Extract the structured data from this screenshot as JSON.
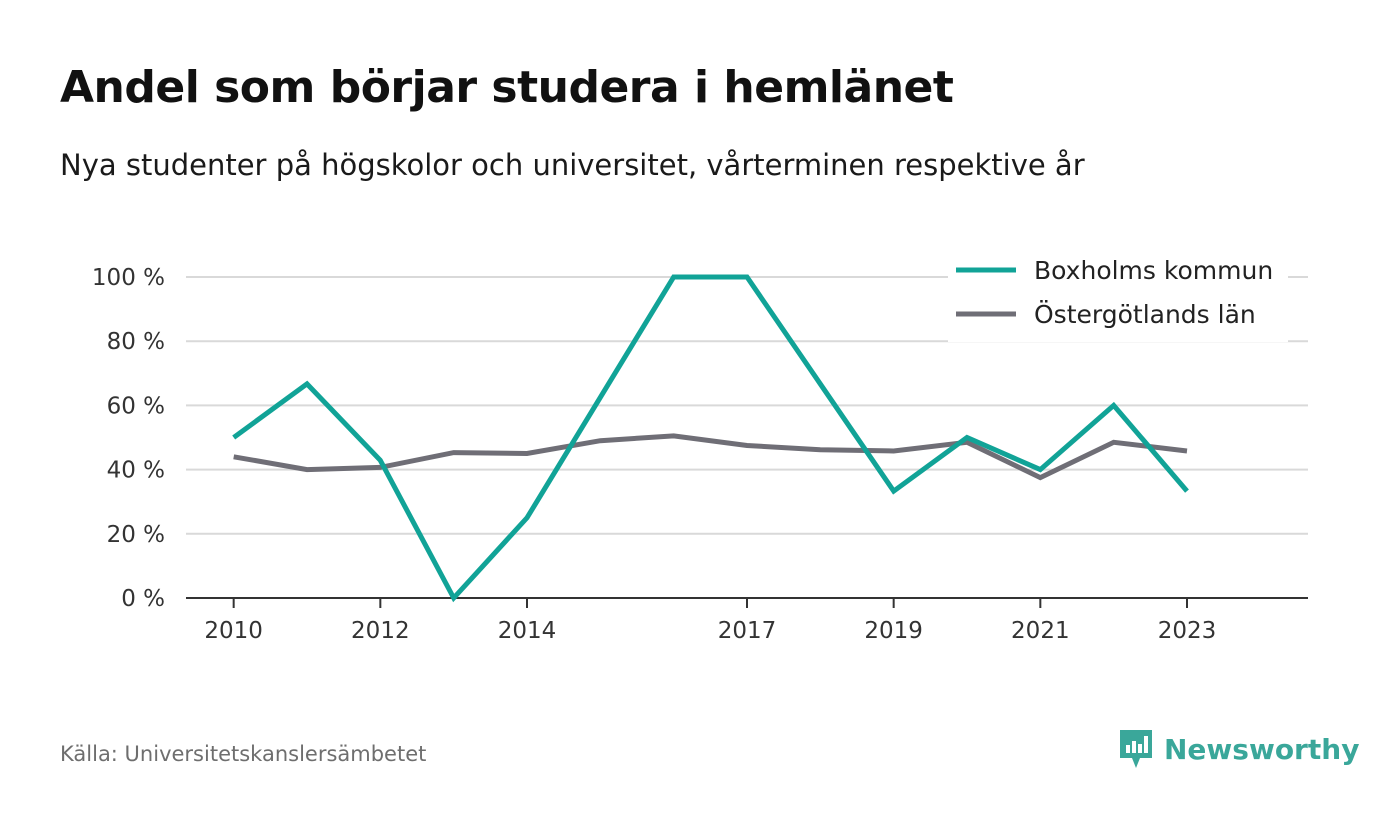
{
  "title": "Andel som börjar studera i hemlänet",
  "subtitle": "Nya studenter på högskolor och universitet, vårterminen respektive år",
  "source": "Källa: Universitetskanslersämbetet",
  "brand": {
    "name": "Newsworthy",
    "icon": "newsworthy-logo-icon",
    "color": "#3aa79a"
  },
  "chart_data": {
    "type": "line",
    "x": [
      2010,
      2011,
      2012,
      2013,
      2014,
      2015,
      2016,
      2017,
      2018,
      2019,
      2020,
      2021,
      2022,
      2023
    ],
    "x_tick_labels": [
      "2010",
      "2012",
      "2014",
      "2017",
      "2019",
      "2021",
      "2023"
    ],
    "x_tick_values": [
      2010,
      2012,
      2014,
      2017,
      2019,
      2021,
      2023
    ],
    "y_tick_labels": [
      "0 %",
      "20 %",
      "40 %",
      "60 %",
      "80 %",
      "100 %"
    ],
    "y_tick_values": [
      0,
      20,
      40,
      60,
      80,
      100
    ],
    "ylim": [
      0,
      100
    ],
    "xlim": [
      2009.35,
      2024.65
    ],
    "grid": true,
    "legend_position": "top-right",
    "series": [
      {
        "name": "Boxholms kommun",
        "color": "#11a397",
        "values": [
          50,
          66.7,
          42.9,
          0,
          25,
          62.5,
          100,
          100,
          66.7,
          33.3,
          50,
          40,
          60,
          33.3
        ]
      },
      {
        "name": "Östergötlands län",
        "color": "#6f6e76",
        "values": [
          44,
          40,
          40.7,
          45.3,
          45,
          49,
          50.5,
          47.5,
          46.2,
          45.8,
          48.5,
          37.5,
          48.5,
          45.8
        ]
      }
    ]
  }
}
